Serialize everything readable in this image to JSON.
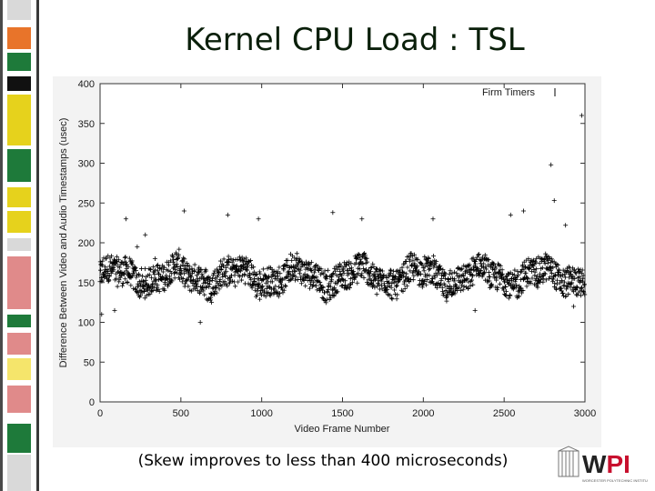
{
  "slide": {
    "title": "Kernel CPU Load : TSL",
    "caption": "(Skew improves to less than 400 microseconds)",
    "logo_text": "WPI",
    "logo_subtext": "WORCESTER POLYTECHNIC INSTITUTE"
  },
  "colors": {
    "title": "#0a1f0a",
    "logo_red": "#c8102e",
    "sidebar": [
      "#d9d9d9",
      "#e8742a",
      "#1e7a3a",
      "#111111",
      "#e6d21c",
      "#1e7a3a",
      "#e6d21c",
      "#e6d21c",
      "#d9d9d9",
      "#e08a8a",
      "#1e7a3a",
      "#e08a8a",
      "#f5e56b",
      "#e08a8a",
      "#1e7a3a",
      "#d9d9d9"
    ]
  },
  "chart_data": {
    "type": "scatter",
    "xlabel": "Video Frame Number",
    "ylabel": "Difference Between Video and Audio Timestamps (usec)",
    "xlim": [
      0,
      3000
    ],
    "ylim": [
      0,
      400
    ],
    "xticks": [
      "0",
      "500",
      "1000",
      "1500",
      "2000",
      "2500",
      "3000"
    ],
    "yticks": [
      "0",
      "50",
      "100",
      "150",
      "200",
      "250",
      "300",
      "350",
      "400"
    ],
    "grid": false,
    "legend_position": "top-right",
    "series": [
      {
        "name": "Firm Timers",
        "marker": "+",
        "band_center": 158,
        "band_spread": 22,
        "point_count": 1700,
        "outliers": [
          {
            "x": 10,
            "y": 110
          },
          {
            "x": 90,
            "y": 115
          },
          {
            "x": 160,
            "y": 230
          },
          {
            "x": 230,
            "y": 195
          },
          {
            "x": 280,
            "y": 210
          },
          {
            "x": 340,
            "y": 180
          },
          {
            "x": 520,
            "y": 240
          },
          {
            "x": 620,
            "y": 100
          },
          {
            "x": 790,
            "y": 235
          },
          {
            "x": 980,
            "y": 230
          },
          {
            "x": 1440,
            "y": 238
          },
          {
            "x": 1620,
            "y": 230
          },
          {
            "x": 2060,
            "y": 230
          },
          {
            "x": 2320,
            "y": 115
          },
          {
            "x": 2540,
            "y": 235
          },
          {
            "x": 2620,
            "y": 240
          },
          {
            "x": 2700,
            "y": 180
          },
          {
            "x": 2790,
            "y": 298
          },
          {
            "x": 2810,
            "y": 253
          },
          {
            "x": 2880,
            "y": 222
          },
          {
            "x": 2900,
            "y": 170
          },
          {
            "x": 2930,
            "y": 120
          },
          {
            "x": 2980,
            "y": 360
          }
        ]
      }
    ]
  }
}
